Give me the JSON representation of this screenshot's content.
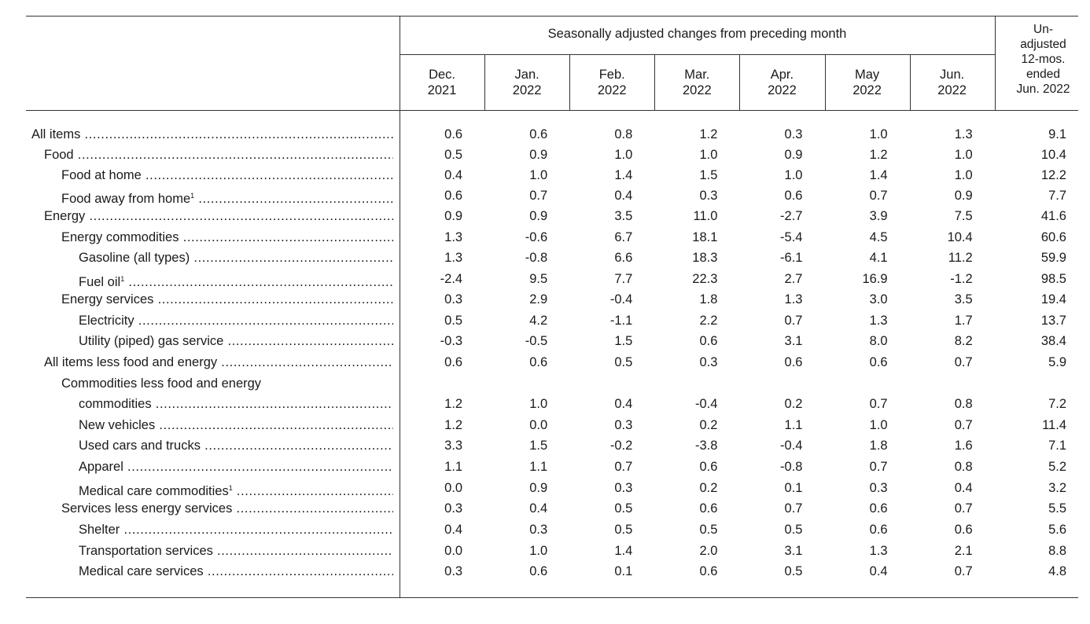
{
  "header": {
    "span_title": "Seasonally adjusted changes from preceding month",
    "unadjusted_title": "Un-\nadjusted\n12-mos.\nended\nJun. 2022",
    "unadjusted_lines": [
      "Un-",
      "adjusted",
      "12-mos.",
      "ended",
      "Jun. 2022"
    ],
    "columns": [
      {
        "line1": "Dec.",
        "line2": "2021"
      },
      {
        "line1": "Jan.",
        "line2": "2022"
      },
      {
        "line1": "Feb.",
        "line2": "2022"
      },
      {
        "line1": "Mar.",
        "line2": "2022"
      },
      {
        "line1": "Apr.",
        "line2": "2022"
      },
      {
        "line1": "May",
        "line2": "2022"
      },
      {
        "line1": "Jun.",
        "line2": "2022"
      }
    ]
  },
  "rows": [
    {
      "label": "All items",
      "sup": "",
      "indent": 0,
      "values": [
        "0.6",
        "0.6",
        "0.8",
        "1.2",
        "0.3",
        "1.0",
        "1.3",
        "9.1"
      ]
    },
    {
      "label": "Food",
      "sup": "",
      "indent": 1,
      "values": [
        "0.5",
        "0.9",
        "1.0",
        "1.0",
        "0.9",
        "1.2",
        "1.0",
        "10.4"
      ]
    },
    {
      "label": "Food at home",
      "sup": "",
      "indent": 2,
      "values": [
        "0.4",
        "1.0",
        "1.4",
        "1.5",
        "1.0",
        "1.4",
        "1.0",
        "12.2"
      ]
    },
    {
      "label": "Food away from home",
      "sup": "1",
      "indent": 2,
      "values": [
        "0.6",
        "0.7",
        "0.4",
        "0.3",
        "0.6",
        "0.7",
        "0.9",
        "7.7"
      ]
    },
    {
      "label": "Energy",
      "sup": "",
      "indent": 1,
      "values": [
        "0.9",
        "0.9",
        "3.5",
        "11.0",
        "-2.7",
        "3.9",
        "7.5",
        "41.6"
      ]
    },
    {
      "label": "Energy commodities",
      "sup": "",
      "indent": 2,
      "values": [
        "1.3",
        "-0.6",
        "6.7",
        "18.1",
        "-5.4",
        "4.5",
        "10.4",
        "60.6"
      ]
    },
    {
      "label": "Gasoline (all types)",
      "sup": "",
      "indent": 3,
      "values": [
        "1.3",
        "-0.8",
        "6.6",
        "18.3",
        "-6.1",
        "4.1",
        "11.2",
        "59.9"
      ]
    },
    {
      "label": "Fuel oil",
      "sup": "1",
      "indent": 3,
      "values": [
        "-2.4",
        "9.5",
        "7.7",
        "22.3",
        "2.7",
        "16.9",
        "-1.2",
        "98.5"
      ]
    },
    {
      "label": "Energy services",
      "sup": "",
      "indent": 2,
      "values": [
        "0.3",
        "2.9",
        "-0.4",
        "1.8",
        "1.3",
        "3.0",
        "3.5",
        "19.4"
      ]
    },
    {
      "label": "Electricity",
      "sup": "",
      "indent": 3,
      "values": [
        "0.5",
        "4.2",
        "-1.1",
        "2.2",
        "0.7",
        "1.3",
        "1.7",
        "13.7"
      ]
    },
    {
      "label": "Utility (piped) gas service",
      "sup": "",
      "indent": 3,
      "values": [
        "-0.3",
        "-0.5",
        "1.5",
        "0.6",
        "3.1",
        "8.0",
        "8.2",
        "38.4"
      ]
    },
    {
      "label": "All items less food and energy",
      "sup": "",
      "indent": 1,
      "values": [
        "0.6",
        "0.6",
        "0.5",
        "0.3",
        "0.6",
        "0.6",
        "0.7",
        "5.9"
      ]
    },
    {
      "label": "commodities",
      "pre_label": "Commodities less food and energy",
      "sup": "",
      "indent": 3,
      "values": [
        "1.2",
        "1.0",
        "0.4",
        "-0.4",
        "0.2",
        "0.7",
        "0.8",
        "7.2"
      ]
    },
    {
      "label": "New vehicles",
      "sup": "",
      "indent": 3,
      "values": [
        "1.2",
        "0.0",
        "0.3",
        "0.2",
        "1.1",
        "1.0",
        "0.7",
        "11.4"
      ]
    },
    {
      "label": "Used cars and trucks",
      "sup": "",
      "indent": 3,
      "values": [
        "3.3",
        "1.5",
        "-0.2",
        "-3.8",
        "-0.4",
        "1.8",
        "1.6",
        "7.1"
      ]
    },
    {
      "label": "Apparel",
      "sup": "",
      "indent": 3,
      "values": [
        "1.1",
        "1.1",
        "0.7",
        "0.6",
        "-0.8",
        "0.7",
        "0.8",
        "5.2"
      ]
    },
    {
      "label": "Medical care commodities",
      "sup": "1",
      "indent": 3,
      "values": [
        "0.0",
        "0.9",
        "0.3",
        "0.2",
        "0.1",
        "0.3",
        "0.4",
        "3.2"
      ]
    },
    {
      "label": "Services less energy services",
      "sup": "",
      "indent": 2,
      "values": [
        "0.3",
        "0.4",
        "0.5",
        "0.6",
        "0.7",
        "0.6",
        "0.7",
        "5.5"
      ]
    },
    {
      "label": "Shelter",
      "sup": "",
      "indent": 3,
      "values": [
        "0.4",
        "0.3",
        "0.5",
        "0.5",
        "0.5",
        "0.6",
        "0.6",
        "5.6"
      ]
    },
    {
      "label": "Transportation services",
      "sup": "",
      "indent": 3,
      "values": [
        "0.0",
        "1.0",
        "1.4",
        "2.0",
        "3.1",
        "1.3",
        "2.1",
        "8.8"
      ]
    },
    {
      "label": "Medical care services",
      "sup": "",
      "indent": 3,
      "values": [
        "0.3",
        "0.6",
        "0.1",
        "0.6",
        "0.5",
        "0.4",
        "0.7",
        "4.8"
      ]
    }
  ]
}
